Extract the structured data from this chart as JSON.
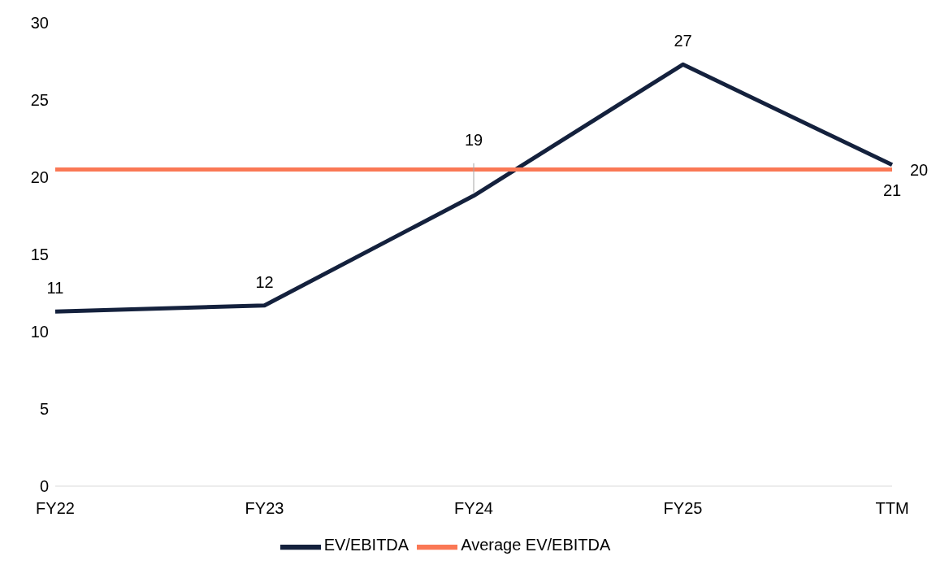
{
  "chart_data": {
    "type": "line",
    "categories": [
      "FY22",
      "FY23",
      "FY24",
      "FY25",
      "TTM"
    ],
    "series": [
      {
        "name": "EV/EBITDA",
        "color": "#14213d",
        "values": [
          11.3,
          11.7,
          18.8,
          27.3,
          20.8
        ],
        "value_labels": [
          "11",
          "12",
          "19",
          "27",
          "21"
        ]
      },
      {
        "name": "Average EV/EBITDA",
        "color": "#fa7855",
        "values": [
          20.5,
          20.5,
          20.5,
          20.5,
          20.5
        ],
        "value_labels": [
          null,
          null,
          null,
          null,
          "20"
        ]
      }
    ],
    "ylim": [
      0,
      30
    ],
    "yticks": [
      0,
      5,
      10,
      15,
      20,
      25,
      30
    ],
    "grid": false,
    "legend": "bottom",
    "marker": "none",
    "line_style": "solid"
  }
}
